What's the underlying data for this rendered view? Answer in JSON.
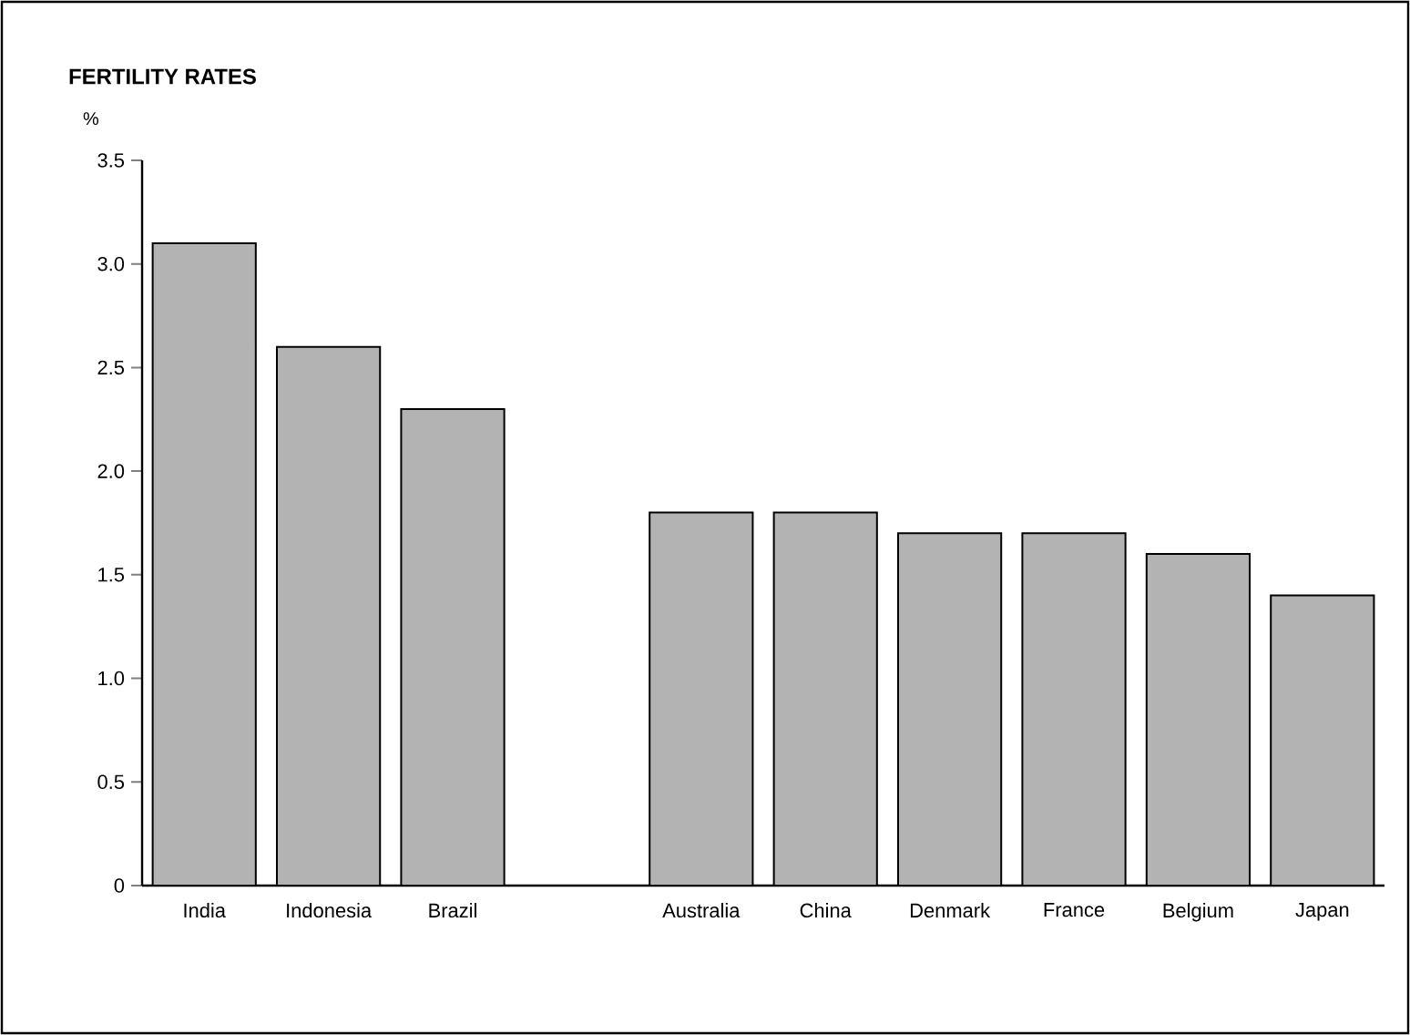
{
  "chart_data": {
    "type": "bar",
    "title": "FERTILITY RATES",
    "ylabel": "%",
    "categories": [
      "India",
      "Indonesia",
      "Brazil",
      null,
      "Australia",
      "China",
      "Denmark",
      "France",
      "Belgium",
      "Japan"
    ],
    "values": [
      3.1,
      2.6,
      2.3,
      null,
      1.8,
      1.8,
      1.7,
      1.7,
      1.6,
      1.4
    ],
    "color": "#b3b3b3",
    "ylim": [
      0,
      3.5
    ],
    "yticks": [
      0,
      0.5,
      {
        "value": 1,
        "label": "1.0"
      },
      1.5,
      {
        "value": 2,
        "label": "2.0"
      },
      2.5,
      {
        "value": 3,
        "label": "3.0"
      },
      3.5
    ]
  }
}
